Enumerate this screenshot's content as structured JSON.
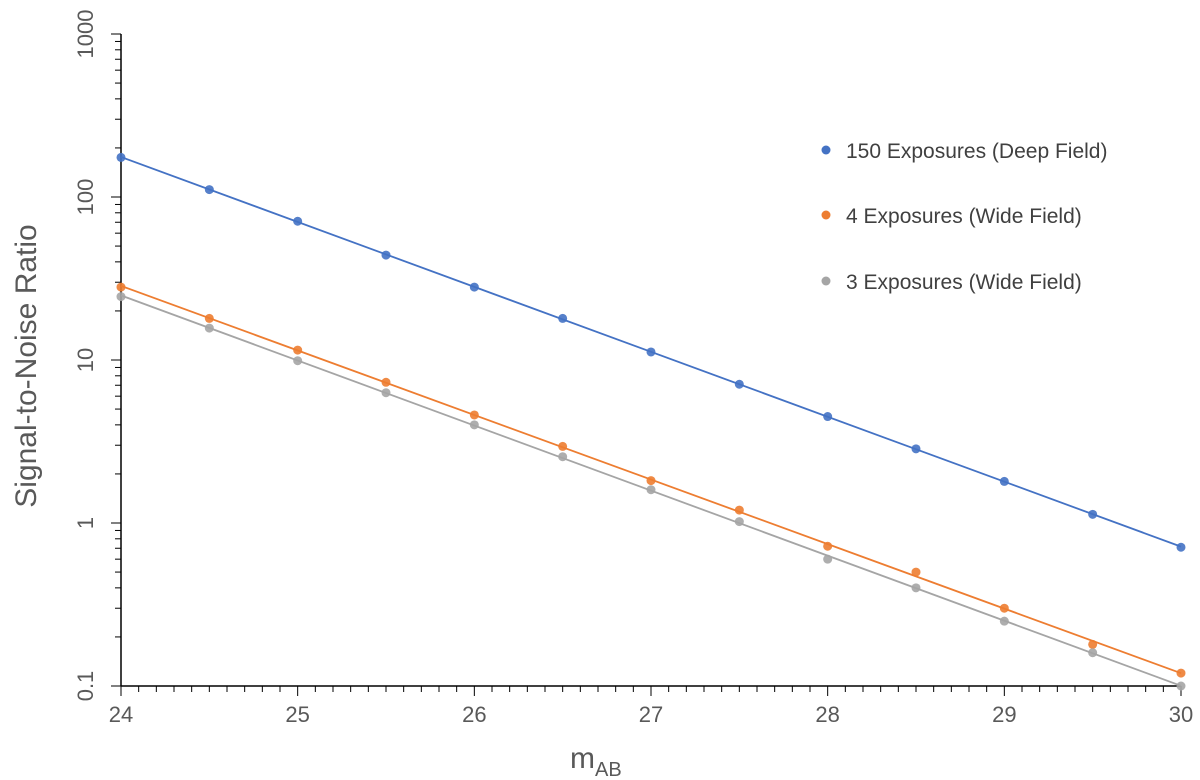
{
  "chart_data": {
    "type": "scatter",
    "title": "",
    "xlabel_main": "m",
    "xlabel_sub": "AB",
    "ylabel": "Signal-to-Noise Ratio",
    "xlim": [
      24,
      30
    ],
    "ylim": [
      0.1,
      1000
    ],
    "yscale": "log",
    "grid": false,
    "legend_position": "right",
    "x_ticks": [
      "24",
      "25",
      "26",
      "27",
      "28",
      "29",
      "30"
    ],
    "y_ticks": [
      "0.1",
      "1",
      "10",
      "100",
      "1000"
    ],
    "x": [
      24,
      24.5,
      25,
      25.5,
      26,
      26.5,
      27,
      27.5,
      28,
      28.5,
      29,
      29.5,
      30
    ],
    "series": [
      {
        "name": "150 Exposures (Deep Field)",
        "color": "#4472c4",
        "values": [
          175,
          111,
          71,
          44,
          28,
          18,
          11.2,
          7.1,
          4.5,
          2.85,
          1.8,
          1.13,
          0.71
        ],
        "trend": [
          176,
          0.71
        ]
      },
      {
        "name": "4 Exposures (Wide Field)",
        "color": "#ed7d31",
        "values": [
          28,
          18,
          11.5,
          7.3,
          4.6,
          2.95,
          1.82,
          1.2,
          0.72,
          0.5,
          0.3,
          0.18,
          0.12
        ]
      },
      {
        "name": "3 Exposures (Wide Field)",
        "color": "#a5a5a5",
        "values": [
          24.5,
          15.7,
          9.9,
          6.3,
          4.0,
          2.55,
          1.6,
          1.02,
          0.6,
          0.4,
          0.25,
          0.16,
          0.1
        ]
      }
    ]
  }
}
